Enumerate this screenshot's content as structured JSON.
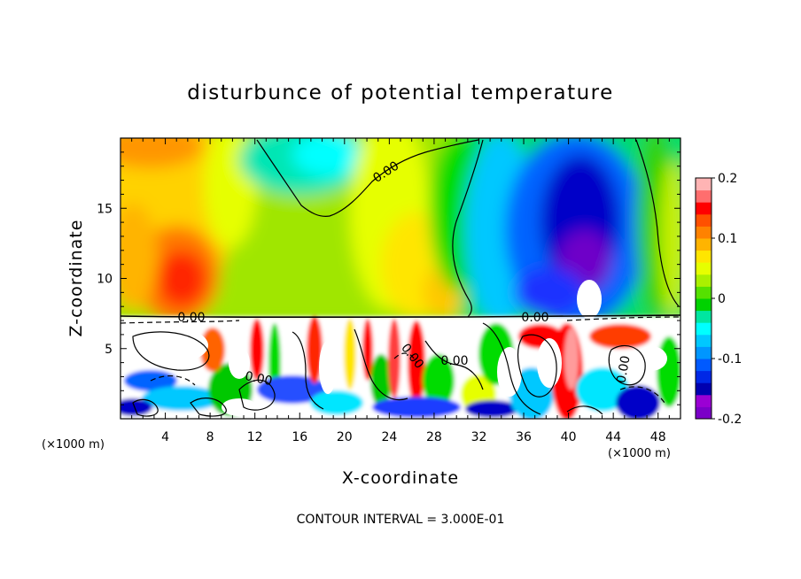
{
  "chart_data": {
    "type": "heatmap",
    "title": "disturbunce of potential temperature",
    "xlabel": "X-coordinate",
    "ylabel": "Z-coordinate",
    "x_unit": "(×1000 m)",
    "z_unit": "(×1000 m)",
    "xlim": [
      0,
      50
    ],
    "ylim": [
      0,
      20
    ],
    "x_ticks": [
      4,
      8,
      12,
      16,
      20,
      24,
      28,
      32,
      36,
      40,
      44,
      48
    ],
    "y_ticks": [
      5,
      10,
      15
    ],
    "colorbar": {
      "range": [
        -0.2,
        0.2
      ],
      "tick_labels": [
        "0.2",
        "0.1",
        "0",
        "-0.1",
        "-0.2"
      ],
      "tick_values": [
        0.2,
        0.1,
        0,
        -0.1,
        -0.2
      ],
      "colors": [
        "#7b00c8",
        "#9b00d4",
        "#0000b0",
        "#0028e6",
        "#005aff",
        "#0096ff",
        "#00c8ff",
        "#00ffff",
        "#00e6a0",
        "#00d200",
        "#55e100",
        "#aaf000",
        "#e6ff00",
        "#ffe600",
        "#ffb400",
        "#ff8200",
        "#ff5000",
        "#ff0000",
        "#ff6e6e",
        "#ffb4b4"
      ]
    },
    "contour_labels": [
      "0.00",
      "0.00",
      "0.00",
      "0.00",
      "0.00",
      "0.00",
      "0.00"
    ],
    "contour_interval_text": "CONTOUR INTERVAL = 3.000E-01"
  }
}
